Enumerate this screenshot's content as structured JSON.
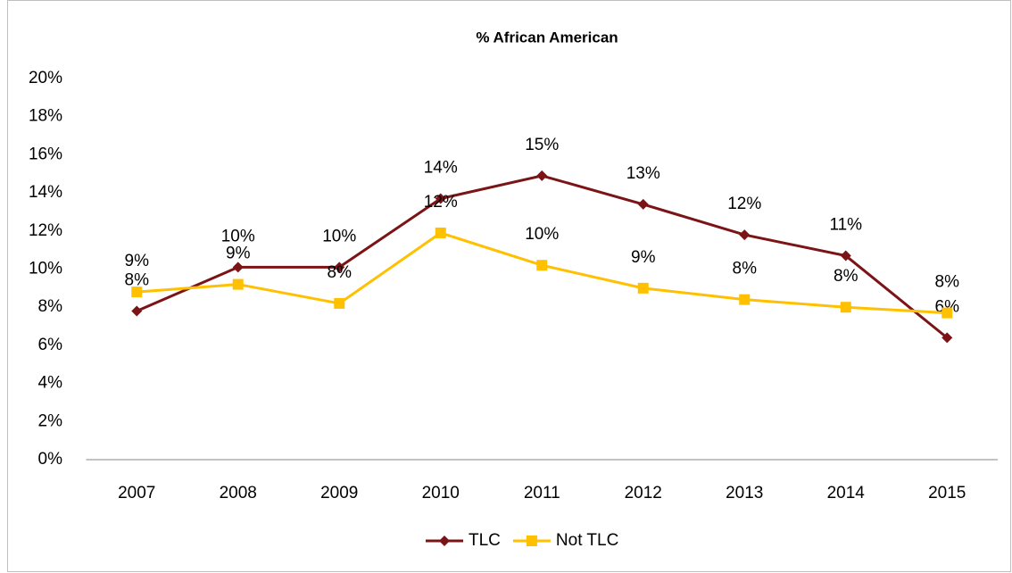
{
  "chart_data": {
    "type": "line",
    "title": "% African American",
    "categories": [
      "2007",
      "2008",
      "2009",
      "2010",
      "2011",
      "2012",
      "2013",
      "2014",
      "2015"
    ],
    "series": [
      {
        "name": "TLC",
        "color": "#7b1416",
        "marker": "diamond",
        "values": [
          7.8,
          10.1,
          10.1,
          13.7,
          14.9,
          13.4,
          11.8,
          10.7,
          6.4
        ],
        "value_labels": [
          "8%",
          "10%",
          "10%",
          "14%",
          "15%",
          "13%",
          "12%",
          "11%",
          "6%"
        ]
      },
      {
        "name": "Not TLC",
        "color": "#ffc000",
        "marker": "square",
        "values": [
          8.8,
          9.2,
          8.2,
          11.9,
          10.2,
          9.0,
          8.4,
          8.0,
          7.7
        ],
        "value_labels": [
          "9%",
          "9%",
          "8%",
          "12%",
          "10%",
          "9%",
          "8%",
          "8%",
          "8%"
        ]
      }
    ],
    "ylim": [
      0,
      20
    ],
    "yticks": [
      {
        "value": 0,
        "label": "0%"
      },
      {
        "value": 2,
        "label": "2%"
      },
      {
        "value": 4,
        "label": "4%"
      },
      {
        "value": 6,
        "label": "6%"
      },
      {
        "value": 8,
        "label": "8%"
      },
      {
        "value": 10,
        "label": "10%"
      },
      {
        "value": 12,
        "label": "12%"
      },
      {
        "value": 14,
        "label": "14%"
      },
      {
        "value": 16,
        "label": "16%"
      },
      {
        "value": 18,
        "label": "18%"
      },
      {
        "value": 20,
        "label": "20%"
      }
    ],
    "grid": false,
    "legend": "bottom"
  }
}
